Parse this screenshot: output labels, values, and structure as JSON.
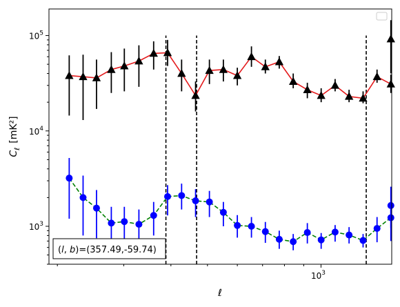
{
  "chart_data": {
    "type": "line",
    "title": "",
    "xlabel": "ℓ",
    "ylabel": "C",
    "ylabel_subscript": "ℓ",
    "ylabel_units": "[mK²]",
    "xscale": "log",
    "yscale": "log",
    "xlim": [
      190,
      1540
    ],
    "ylim": [
      400,
      190000
    ],
    "xtick_labels": [
      {
        "value": 1000,
        "base": "10",
        "exp": "3"
      }
    ],
    "ytick_labels": [
      {
        "value": 1000,
        "base": "10",
        "exp": "3"
      },
      {
        "value": 10000,
        "base": "10",
        "exp": "4"
      },
      {
        "value": 100000,
        "base": "10",
        "exp": "5"
      }
    ],
    "legend": "top-right",
    "legend_entries": [],
    "annotation": "(l, b)=(357.49,-59.74)",
    "annotation_parts": {
      "l": "l",
      "b": "b",
      "value": "=(357.49,-59.74)"
    },
    "vertical_lines": [
      {
        "x": 388,
        "ymax": 100000
      },
      {
        "x": 468,
        "ymax": 100000
      },
      {
        "x": 1318,
        "ymax": 100000
      }
    ],
    "series": [
      {
        "marker": "triangle",
        "marker_color": "#000000",
        "line_color": "#e41a1c",
        "line_style": "solid",
        "errorbar_color": "#000000",
        "x": [
          215,
          234,
          254,
          278,
          301,
          329,
          360,
          392,
          427,
          465,
          506,
          551,
          600,
          654,
          712,
          775,
          844,
          920,
          1001,
          1090,
          1187,
          1293,
          1408,
          1532
        ],
        "y": [
          38000,
          37000,
          36000,
          44000,
          48000,
          54000,
          65000,
          66000,
          40000,
          23500,
          43000,
          44000,
          38000,
          60000,
          47000,
          53000,
          33000,
          27000,
          23500,
          30000,
          23000,
          22000,
          37000,
          31000
        ],
        "yerr_low": [
          14500,
          13000,
          17000,
          25000,
          26000,
          29000,
          44000,
          48000,
          26000,
          16000,
          31000,
          33000,
          30000,
          47000,
          40000,
          45000,
          28000,
          22000,
          20000,
          26000,
          20000,
          19500,
          32000,
          25000
        ],
        "yerr_high": [
          62000,
          63000,
          56000,
          67000,
          73000,
          79000,
          87000,
          90000,
          56000,
          33000,
          56000,
          56000,
          46000,
          77000,
          56000,
          61000,
          40000,
          32000,
          28000,
          35000,
          27000,
          26000,
          44000,
          39000
        ],
        "extra_point": {
          "x": 1532,
          "y": 92000,
          "yerr_low": 40000,
          "yerr_high": 145000
        }
      },
      {
        "marker": "circle",
        "marker_color": "#0000ff",
        "line_color": "#008000",
        "line_style": "dashed",
        "errorbar_color": "#0000ff",
        "x": [
          215,
          234,
          254,
          278,
          301,
          329,
          360,
          392,
          427,
          465,
          506,
          551,
          600,
          654,
          712,
          775,
          844,
          920,
          1001,
          1090,
          1187,
          1293,
          1408,
          1532
        ],
        "y": [
          3200,
          2000,
          1550,
          1080,
          1120,
          1050,
          1300,
          2050,
          2100,
          1850,
          1800,
          1400,
          1020,
          1000,
          880,
          730,
          690,
          860,
          720,
          870,
          810,
          710,
          950,
          1230
        ],
        "yerr_low": [
          1200,
          800,
          750,
          600,
          650,
          600,
          800,
          1300,
          1500,
          1250,
          1250,
          1000,
          760,
          760,
          670,
          580,
          560,
          660,
          580,
          690,
          660,
          600,
          680,
          960
        ],
        "yerr_high": [
          5200,
          3400,
          2400,
          1600,
          1600,
          1500,
          1800,
          2700,
          2800,
          2450,
          2350,
          1800,
          1310,
          1250,
          1110,
          900,
          830,
          1080,
          850,
          1030,
          980,
          830,
          1250,
          1500
        ],
        "extra_point": {
          "x": 1532,
          "y": 1650,
          "yerr_low": 700,
          "yerr_high": 2600
        }
      }
    ]
  }
}
